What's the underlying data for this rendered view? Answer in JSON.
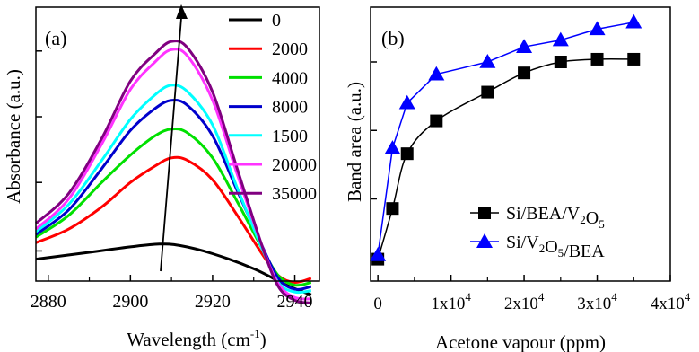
{
  "chart_data": [
    {
      "type": "line",
      "panel_label": "(a)",
      "xlabel_text": "Wavelength (cm",
      "xlabel_sup": "-1",
      "xlabel_tail": ")",
      "ylabel": "Absorbance (a.u.)",
      "xlim": [
        2877,
        2946
      ],
      "ylim": [
        0,
        10
      ],
      "xticks": [
        "2880",
        "2900",
        "2920",
        "2940"
      ],
      "xtick_values": [
        2880,
        2900,
        2920,
        2940
      ],
      "ytick_values": [
        1.1,
        3.6,
        6.0,
        8.4
      ],
      "y_tick_labels_shown": false,
      "legend_placement": "top-right",
      "series": [
        {
          "name": "0",
          "color": "#000000",
          "points": [
            [
              2877,
              0.8
            ],
            [
              2890,
              1.05
            ],
            [
              2900,
              1.25
            ],
            [
              2907,
              1.35
            ],
            [
              2912,
              1.3
            ],
            [
              2920,
              1.0
            ],
            [
              2930,
              0.45
            ],
            [
              2938,
              -0.15
            ],
            [
              2944,
              -0.5
            ]
          ]
        },
        {
          "name": "2000",
          "color": "#ff0000",
          "points": [
            [
              2877,
              1.4
            ],
            [
              2885,
              1.9
            ],
            [
              2893,
              2.7
            ],
            [
              2900,
              3.6
            ],
            [
              2906,
              4.2
            ],
            [
              2910,
              4.5
            ],
            [
              2914,
              4.4
            ],
            [
              2920,
              3.7
            ],
            [
              2926,
              2.4
            ],
            [
              2932,
              1.0
            ],
            [
              2936,
              0.2
            ],
            [
              2940,
              -0.05
            ],
            [
              2944,
              0.1
            ]
          ]
        },
        {
          "name": "4000",
          "color": "#00e000",
          "points": [
            [
              2877,
              1.6
            ],
            [
              2885,
              2.4
            ],
            [
              2893,
              3.6
            ],
            [
              2900,
              4.6
            ],
            [
              2906,
              5.3
            ],
            [
              2910,
              5.55
            ],
            [
              2914,
              5.4
            ],
            [
              2920,
              4.5
            ],
            [
              2926,
              2.9
            ],
            [
              2932,
              1.2
            ],
            [
              2936,
              0.2
            ],
            [
              2940,
              -0.15
            ],
            [
              2944,
              -0.05
            ]
          ]
        },
        {
          "name": "8000",
          "color": "#0000cc",
          "points": [
            [
              2877,
              1.7
            ],
            [
              2885,
              2.6
            ],
            [
              2893,
              4.1
            ],
            [
              2900,
              5.5
            ],
            [
              2906,
              6.3
            ],
            [
              2910,
              6.6
            ],
            [
              2914,
              6.4
            ],
            [
              2920,
              5.3
            ],
            [
              2926,
              3.3
            ],
            [
              2932,
              1.3
            ],
            [
              2936,
              0.1
            ],
            [
              2940,
              -0.3
            ],
            [
              2944,
              -0.2
            ]
          ]
        },
        {
          "name": "1500",
          "color": "#00ffff",
          "points": [
            [
              2877,
              1.8
            ],
            [
              2885,
              2.8
            ],
            [
              2893,
              4.4
            ],
            [
              2900,
              5.9
            ],
            [
              2906,
              6.8
            ],
            [
              2910,
              7.15
            ],
            [
              2914,
              6.9
            ],
            [
              2920,
              5.7
            ],
            [
              2926,
              3.4
            ],
            [
              2932,
              1.2
            ],
            [
              2936,
              -0.05
            ],
            [
              2940,
              -0.4
            ],
            [
              2944,
              -0.35
            ]
          ]
        },
        {
          "name": "20000",
          "color": "#ff33ff",
          "points": [
            [
              2877,
              1.9
            ],
            [
              2885,
              3.0
            ],
            [
              2893,
              5.0
            ],
            [
              2900,
              7.0
            ],
            [
              2906,
              8.0
            ],
            [
              2910,
              8.45
            ],
            [
              2914,
              8.2
            ],
            [
              2920,
              6.6
            ],
            [
              2926,
              3.9
            ],
            [
              2932,
              1.3
            ],
            [
              2936,
              -0.1
            ],
            [
              2940,
              -0.6
            ],
            [
              2944,
              -0.65
            ]
          ]
        },
        {
          "name": "35000",
          "color": "#800080",
          "points": [
            [
              2877,
              2.1
            ],
            [
              2885,
              3.2
            ],
            [
              2893,
              5.2
            ],
            [
              2900,
              7.3
            ],
            [
              2906,
              8.3
            ],
            [
              2910,
              8.75
            ],
            [
              2914,
              8.5
            ],
            [
              2920,
              6.9
            ],
            [
              2926,
              4.1
            ],
            [
              2932,
              1.3
            ],
            [
              2936,
              -0.2
            ],
            [
              2940,
              -0.7
            ],
            [
              2944,
              -0.8
            ]
          ]
        }
      ]
    },
    {
      "type": "line",
      "panel_label": "(b)",
      "xlabel": "Acetone vapour (ppm)",
      "ylabel": "Band area (a.u.)",
      "xlim": [
        -1000,
        40000
      ],
      "ylim": [
        0,
        10
      ],
      "xtick_values": [
        0,
        10000,
        20000,
        30000,
        40000
      ],
      "xtick_labels": [
        {
          "base": "0",
          "exp": ""
        },
        {
          "base": "1x10",
          "exp": "4"
        },
        {
          "base": "2x10",
          "exp": "4"
        },
        {
          "base": "3x10",
          "exp": "4"
        },
        {
          "base": "4x10",
          "exp": "4"
        }
      ],
      "ytick_values": [
        3.0,
        5.5,
        8.0
      ],
      "y_tick_labels_shown": false,
      "legend_placement": "bottom-right",
      "series": [
        {
          "name_parts": [
            {
              "t": "Si/BEA/V",
              "sub": false
            },
            {
              "t": "2",
              "sub": true
            },
            {
              "t": "O",
              "sub": false
            },
            {
              "t": "5",
              "sub": true
            }
          ],
          "color": "#000000",
          "marker": "square",
          "x": [
            0,
            2000,
            4000,
            8000,
            15000,
            20000,
            25000,
            30000,
            35000
          ],
          "y": [
            0.8,
            2.65,
            4.65,
            5.85,
            6.9,
            7.6,
            8.0,
            8.1,
            8.1
          ]
        },
        {
          "name_parts": [
            {
              "t": "Si/V",
              "sub": false
            },
            {
              "t": "2",
              "sub": true
            },
            {
              "t": "O",
              "sub": false
            },
            {
              "t": "5",
              "sub": true
            },
            {
              "t": "/BEA",
              "sub": false
            }
          ],
          "color": "#0000ff",
          "marker": "triangle",
          "x": [
            0,
            2000,
            4000,
            8000,
            15000,
            20000,
            25000,
            30000,
            35000
          ],
          "y": [
            0.95,
            4.85,
            6.5,
            7.55,
            8.0,
            8.55,
            8.8,
            9.2,
            9.45
          ]
        }
      ]
    }
  ]
}
